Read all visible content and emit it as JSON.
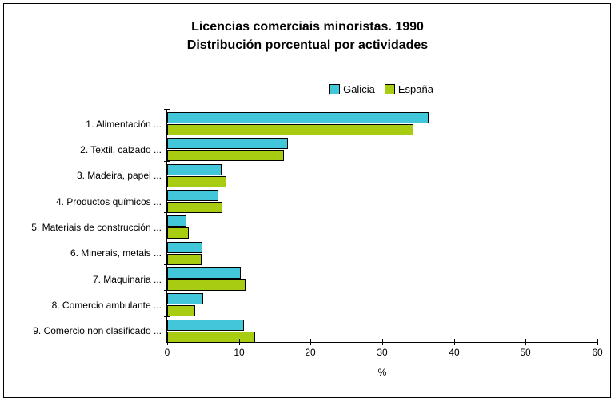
{
  "frame": {
    "background": "#ffffff",
    "border_color": "#000000"
  },
  "chart_data": {
    "type": "bar",
    "orientation": "horizontal",
    "title_line1": "Licencias comerciais minoristas. 1990",
    "title_line2": "Distribución porcentual por actividades",
    "categories": [
      "1. Alimentación ...",
      "2. Textil, calzado ...",
      "3. Madeira, papel ...",
      "4. Productos químicos ...",
      "5. Materiais de construcción ...",
      "6. Minerais, metais ...",
      "7. Maquinaria ...",
      "8. Comercio ambulante ...",
      "9. Comercio non clasificado ..."
    ],
    "series": [
      {
        "name": "Galicia",
        "color": "#41C7D9",
        "values": [
          36.2,
          16.6,
          7.4,
          6.9,
          2.5,
          4.7,
          10.0,
          4.8,
          10.5
        ]
      },
      {
        "name": "España",
        "color": "#A8CC12",
        "values": [
          34.1,
          16.1,
          8.0,
          7.5,
          2.8,
          4.6,
          10.7,
          3.7,
          12.0
        ]
      }
    ],
    "xlabel": "%",
    "xlim": [
      0,
      60
    ],
    "x_ticks": [
      0,
      10,
      20,
      30,
      40,
      50,
      60
    ],
    "grid": false,
    "legend_position": "top-center-of-plot",
    "bar_border_color": "#000000"
  }
}
